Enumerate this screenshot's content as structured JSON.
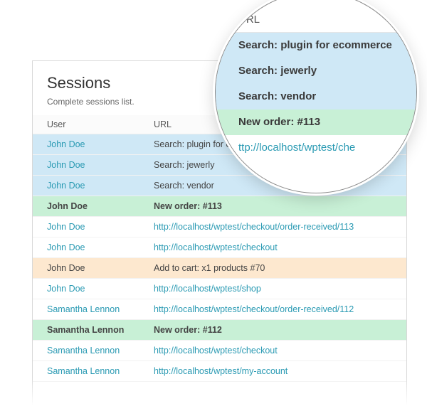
{
  "panel": {
    "title": "Sessions",
    "subtitle": "Complete sessions list."
  },
  "columns": {
    "user": "User",
    "url": "URL"
  },
  "rows": [
    {
      "user": "John Doe",
      "url": "Search: plugin for ecommerce",
      "bg": "#cfe8f6",
      "user_link": true,
      "url_link": false,
      "bold": false
    },
    {
      "user": "John Doe",
      "url": "Search: jewerly",
      "bg": "#cfe8f6",
      "user_link": true,
      "url_link": false,
      "bold": false
    },
    {
      "user": "John Doe",
      "url": "Search: vendor",
      "bg": "#cfe8f6",
      "user_link": true,
      "url_link": false,
      "bold": false
    },
    {
      "user": "John Doe",
      "url": "New order: #113",
      "bg": "#c8f0d6",
      "user_link": false,
      "url_link": false,
      "bold": true
    },
    {
      "user": "John Doe",
      "url": "http://localhost/wptest/checkout/order-received/113",
      "bg": "#ffffff",
      "user_link": true,
      "url_link": true,
      "bold": false
    },
    {
      "user": "John Doe",
      "url": "http://localhost/wptest/checkout",
      "bg": "#ffffff",
      "user_link": true,
      "url_link": true,
      "bold": false
    },
    {
      "user": "John Doe",
      "url": "Add to cart: x1 products #70",
      "bg": "#fde8cf",
      "user_link": false,
      "url_link": false,
      "bold": false
    },
    {
      "user": "John Doe",
      "url": "http://localhost/wptest/shop",
      "bg": "#ffffff",
      "user_link": true,
      "url_link": true,
      "bold": false
    },
    {
      "user": "Samantha Lennon",
      "url": "http://localhost/wptest/checkout/order-received/112",
      "bg": "#ffffff",
      "user_link": true,
      "url_link": true,
      "bold": false
    },
    {
      "user": "Samantha Lennon",
      "url": "New order: #112",
      "bg": "#c8f0d6",
      "user_link": false,
      "url_link": false,
      "bold": true
    },
    {
      "user": "Samantha Lennon",
      "url": "http://localhost/wptest/checkout",
      "bg": "#ffffff",
      "user_link": true,
      "url_link": true,
      "bold": false
    },
    {
      "user": "Samantha Lennon",
      "url": "http://localhost/wptest/my-account",
      "bg": "#ffffff",
      "user_link": true,
      "url_link": true,
      "bold": false
    }
  ],
  "colors": {
    "search_bg": "#cfe8f6",
    "order_bg": "#c8f0d6",
    "cart_bg": "#fde8cf",
    "plain_bg": "#ffffff",
    "link": "#2a9ab3",
    "text": "#444444",
    "panel_border": "#d8d8d8"
  },
  "lens": {
    "header": "URL",
    "rows": [
      {
        "text": "Search: plugin for ecommerce",
        "bg": "#cfe8f6",
        "link": false,
        "bold": true
      },
      {
        "text": "Search: jewerly",
        "bg": "#cfe8f6",
        "link": false,
        "bold": true
      },
      {
        "text": "Search: vendor",
        "bg": "#cfe8f6",
        "link": false,
        "bold": true
      },
      {
        "text": "New order: #113",
        "bg": "#c8f0d6",
        "link": false,
        "bold": true
      },
      {
        "text": "ttp://localhost/wptest/che",
        "bg": "#ffffff",
        "link": true,
        "bold": false
      }
    ]
  }
}
